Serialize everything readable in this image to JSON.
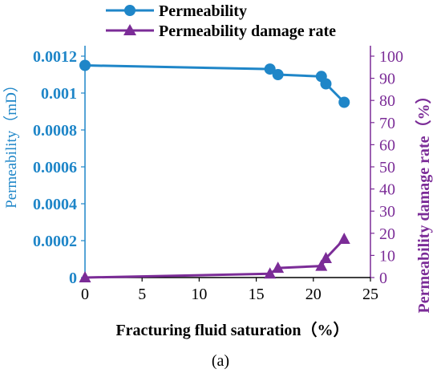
{
  "chart_data": {
    "type": "line",
    "xlabel": "Fracturing fluid saturation（%）",
    "ylabel_left": "Permeability（mD）",
    "ylabel_right": "Permeability damage rate（%）",
    "xlim": [
      0,
      25
    ],
    "ylim_left": [
      0,
      0.0012
    ],
    "ylim_right": [
      0,
      100
    ],
    "x_ticks": [
      "0",
      "5",
      "10",
      "15",
      "20",
      "25"
    ],
    "y_left_ticks": [
      "0",
      "0.0002",
      "0.0004",
      "0.0006",
      "0.0008",
      "0.001",
      "0.0012"
    ],
    "y_right_ticks": [
      "0",
      "10",
      "20",
      "30",
      "40",
      "50",
      "60",
      "70",
      "80",
      "90",
      "100"
    ],
    "legend_position": "top-center",
    "grid": false,
    "caption": "(a)",
    "series": [
      {
        "name": "Permeability",
        "axis": "left",
        "marker": "circle",
        "color": "#1f86c8",
        "x": [
          0,
          16.2,
          16.9,
          20.7,
          21.1,
          22.7
        ],
        "y": [
          0.00115,
          0.00113,
          0.0011,
          0.00109,
          0.00105,
          0.00095
        ]
      },
      {
        "name": "Permeability damage rate",
        "axis": "right",
        "marker": "triangle",
        "color": "#7b2c97",
        "x": [
          0,
          16.2,
          16.9,
          20.7,
          21.1,
          22.7
        ],
        "y": [
          0,
          1.7,
          4.3,
          5.2,
          8.7,
          17.4
        ]
      }
    ]
  }
}
